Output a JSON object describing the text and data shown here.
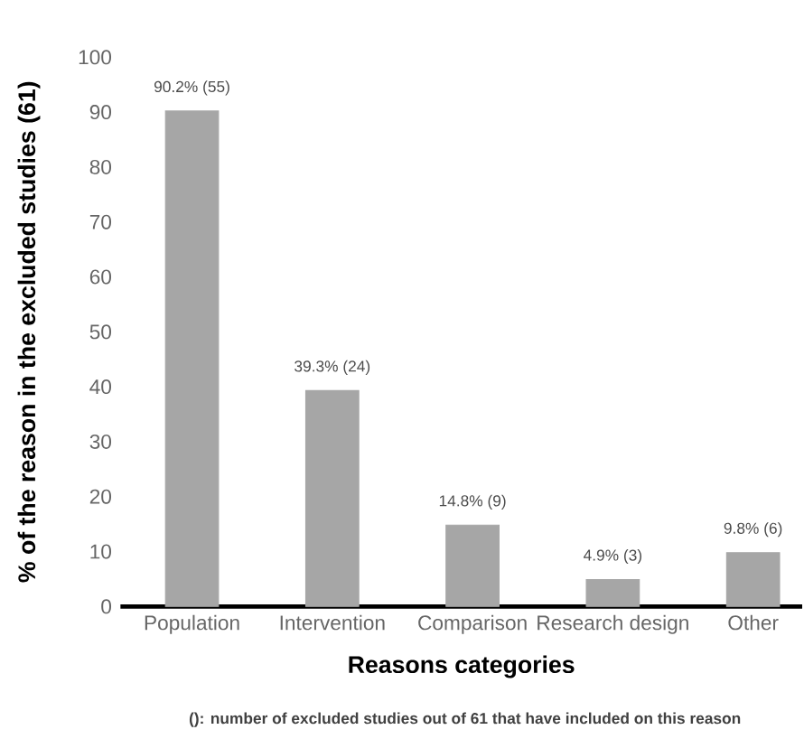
{
  "chart_data": {
    "type": "bar",
    "xlabel": "Reasons categories",
    "ylabel": "% of the reason in the excluded studies (61)",
    "categories": [
      "Population",
      "Intervention",
      "Comparison",
      "Research design",
      "Other"
    ],
    "values": [
      90.2,
      39.3,
      14.8,
      4.9,
      9.8
    ],
    "value_labels": [
      "90.2% (55)",
      "39.3% (24)",
      "14.8% (9)",
      "4.9% (3)",
      "9.8% (6)"
    ],
    "color": "#a6a6a6",
    "ylim": [
      0,
      100
    ],
    "yticks": [
      0,
      10,
      20,
      30,
      40,
      50,
      60,
      70,
      80,
      90,
      100
    ],
    "annotations": [
      "(): number of excluded studies out of 61 that have included on this reason"
    ]
  }
}
